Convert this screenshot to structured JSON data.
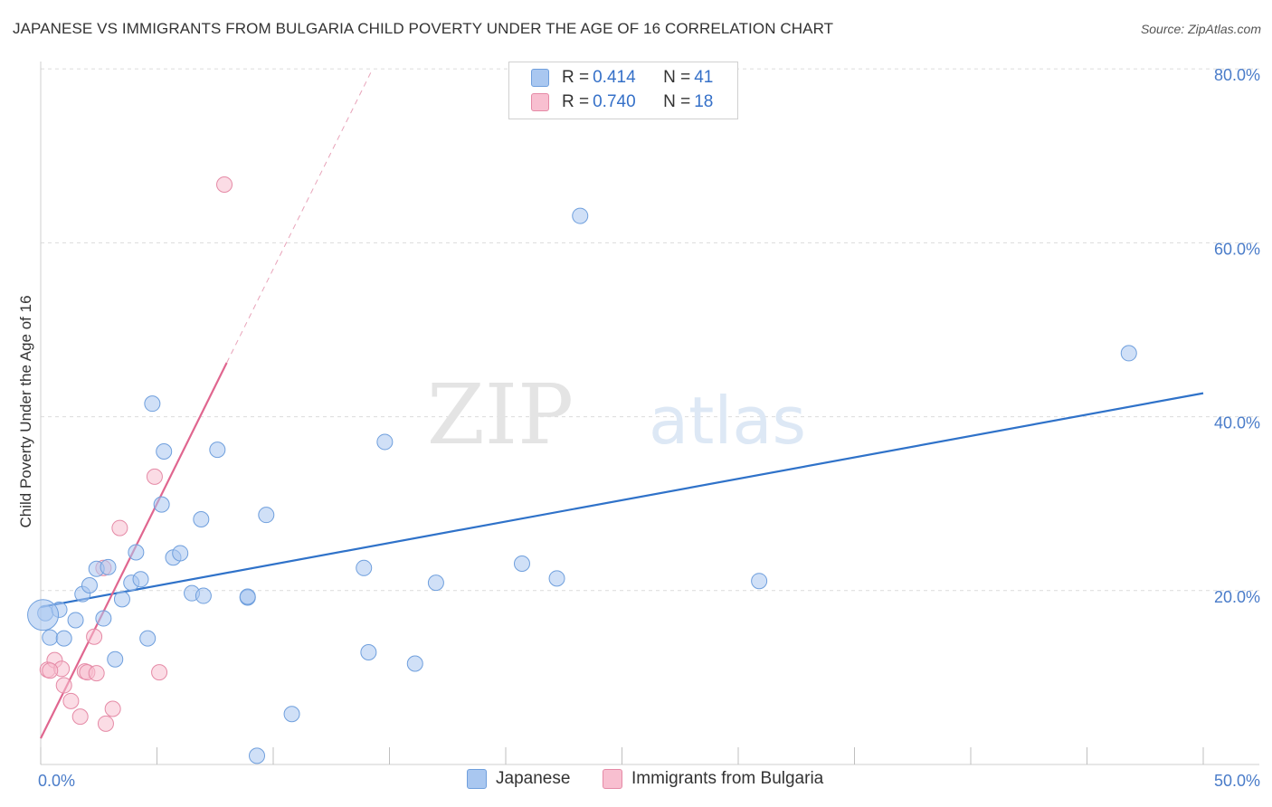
{
  "title": "JAPANESE VS IMMIGRANTS FROM BULGARIA CHILD POVERTY UNDER THE AGE OF 16 CORRELATION CHART",
  "source": "Source: ZipAtlas.com",
  "watermark": {
    "zip": "ZIP",
    "atlas": "atlas"
  },
  "legend": {
    "rows": [
      {
        "r_label": "R = ",
        "r_value": "0.414",
        "n_label": "N = ",
        "n_value": "41",
        "color": "#a9c7f0",
        "border": "#6f9fdd"
      },
      {
        "r_label": "R = ",
        "r_value": "0.740",
        "n_label": "N = ",
        "n_value": "18",
        "color": "#f8bfd0",
        "border": "#e58aa6"
      }
    ]
  },
  "bottom_legend": [
    {
      "label": "Japanese",
      "color": "#a9c7f0",
      "border": "#6f9fdd"
    },
    {
      "label": "Immigrants from Bulgaria",
      "color": "#f8bfd0",
      "border": "#e58aa6"
    }
  ],
  "chart_data": {
    "type": "scatter",
    "title": "JAPANESE VS IMMIGRANTS FROM BULGARIA CHILD POVERTY UNDER THE AGE OF 16 CORRELATION CHART",
    "xlabel": "",
    "ylabel": "Child Poverty Under the Age of 16",
    "xlim": [
      0,
      50
    ],
    "ylim": [
      0,
      80
    ],
    "x_tick_labels": [
      {
        "value": 0,
        "label": "0.0%"
      },
      {
        "value": 50,
        "label": "50.0%"
      }
    ],
    "y_tick_labels": [
      {
        "value": 20,
        "label": "20.0%"
      },
      {
        "value": 40,
        "label": "40.0%"
      },
      {
        "value": 60,
        "label": "60.0%"
      },
      {
        "value": 80,
        "label": "80.0%"
      }
    ],
    "grid": true,
    "legend_position": "top-center",
    "series": [
      {
        "name": "Japanese",
        "color": "#a9c7f0",
        "edge": "#6f9fdd",
        "line_color": "#2f72c9",
        "trend": {
          "x": [
            0,
            50
          ],
          "y": [
            18.1,
            42.7
          ]
        },
        "points": [
          [
            0.2,
            17.4
          ],
          [
            0.4,
            14.6
          ],
          [
            0.8,
            17.8
          ],
          [
            1.0,
            14.5
          ],
          [
            1.5,
            16.6
          ],
          [
            1.8,
            19.6
          ],
          [
            2.1,
            20.6
          ],
          [
            2.4,
            22.5
          ],
          [
            2.7,
            16.8
          ],
          [
            2.9,
            22.7
          ],
          [
            3.2,
            12.1
          ],
          [
            3.5,
            19.0
          ],
          [
            3.9,
            20.9
          ],
          [
            4.1,
            24.4
          ],
          [
            4.3,
            21.3
          ],
          [
            4.6,
            14.5
          ],
          [
            4.8,
            41.5
          ],
          [
            5.3,
            36.0
          ],
          [
            5.2,
            29.9
          ],
          [
            5.7,
            23.8
          ],
          [
            6.0,
            24.3
          ],
          [
            6.5,
            19.7
          ],
          [
            6.9,
            28.2
          ],
          [
            7.0,
            19.4
          ],
          [
            7.6,
            36.2
          ],
          [
            8.9,
            19.2
          ],
          [
            8.9,
            19.3
          ],
          [
            9.3,
            1.0
          ],
          [
            9.7,
            28.7
          ],
          [
            10.8,
            5.8
          ],
          [
            13.9,
            22.6
          ],
          [
            14.1,
            12.9
          ],
          [
            14.8,
            37.1
          ],
          [
            16.1,
            11.6
          ],
          [
            17.0,
            20.9
          ],
          [
            20.7,
            23.1
          ],
          [
            22.2,
            21.4
          ],
          [
            23.2,
            63.1
          ],
          [
            30.9,
            21.1
          ],
          [
            46.8,
            47.3
          ],
          [
            0.1,
            17.2
          ]
        ]
      },
      {
        "name": "Immigrants from Bulgaria",
        "color": "#f8bfd0",
        "edge": "#e58aa6",
        "line_color": "#e0668f",
        "trend": {
          "x": [
            0,
            8
          ],
          "y": [
            3.0,
            46.2
          ]
        },
        "trend_extension": {
          "x": [
            8,
            14.2
          ],
          "y": [
            46.2,
            79.6
          ]
        },
        "points": [
          [
            0.3,
            10.9
          ],
          [
            0.6,
            12.0
          ],
          [
            0.9,
            11.0
          ],
          [
            1.0,
            9.1
          ],
          [
            1.3,
            7.3
          ],
          [
            1.7,
            5.5
          ],
          [
            1.9,
            10.7
          ],
          [
            2.0,
            10.6
          ],
          [
            2.3,
            14.7
          ],
          [
            2.4,
            10.5
          ],
          [
            2.7,
            22.6
          ],
          [
            2.8,
            4.7
          ],
          [
            3.1,
            6.4
          ],
          [
            3.4,
            27.2
          ],
          [
            4.9,
            33.1
          ],
          [
            5.1,
            10.6
          ],
          [
            7.9,
            66.7
          ],
          [
            0.4,
            10.8
          ]
        ]
      }
    ]
  }
}
